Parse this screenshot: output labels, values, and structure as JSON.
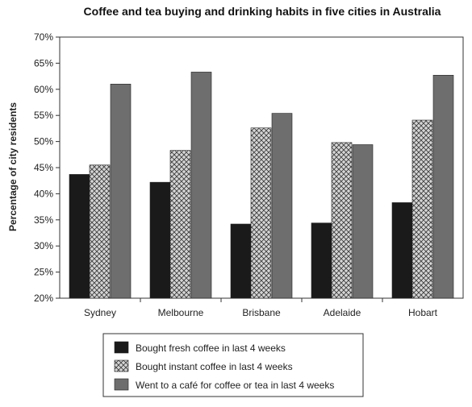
{
  "chart_data": {
    "type": "bar",
    "title": "Coffee and tea buying and drinking habits in five cities in Australia",
    "xlabel": "",
    "ylabel": "Percentage of city residents",
    "ylim": [
      20,
      70
    ],
    "y_ticks": [
      "20%",
      "25%",
      "30%",
      "35%",
      "40%",
      "45%",
      "50%",
      "55%",
      "60%",
      "65%",
      "70%"
    ],
    "categories": [
      "Sydney",
      "Melbourne",
      "Brisbane",
      "Adelaide",
      "Hobart"
    ],
    "series": [
      {
        "name": "Bought fresh coffee in last 4 weeks",
        "values": [
          43.7,
          42.2,
          34.2,
          34.4,
          38.3
        ],
        "color": "#1a1a1a",
        "pattern": "solid"
      },
      {
        "name": "Bought instant coffee in last 4 weeks",
        "values": [
          45.5,
          48.3,
          52.6,
          49.8,
          54.1
        ],
        "color": "#b8b8b8",
        "pattern": "crosshatch"
      },
      {
        "name": "Went to a café for coffee or tea in last 4 weeks",
        "values": [
          61.0,
          63.3,
          55.4,
          49.4,
          62.7
        ],
        "color": "#6e6e6e",
        "pattern": "solid"
      }
    ],
    "grid": false,
    "legend_position": "bottom"
  }
}
